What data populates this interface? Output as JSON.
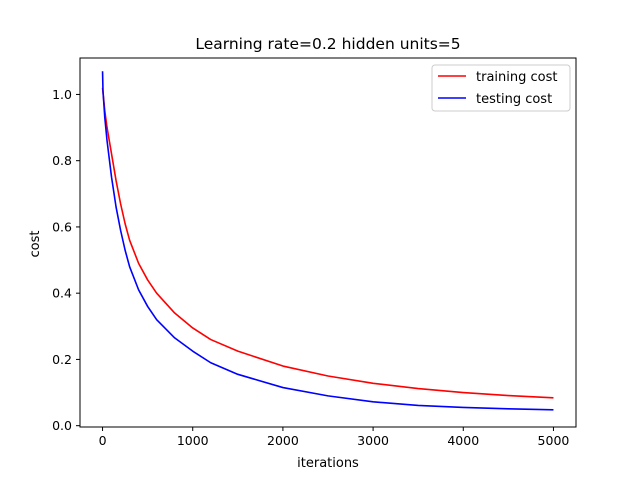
{
  "chart_data": {
    "type": "line",
    "title": "Learning rate=0.2 hidden units=5",
    "xlabel": "iterations",
    "ylabel": "cost",
    "xlim": [
      -250,
      5250
    ],
    "ylim": [
      -0.004,
      1.11
    ],
    "xticks": [
      0,
      1000,
      2000,
      3000,
      4000,
      5000
    ],
    "xtick_labels": [
      "0",
      "1000",
      "2000",
      "3000",
      "4000",
      "5000"
    ],
    "yticks": [
      0.0,
      0.2,
      0.4,
      0.6,
      0.8,
      1.0
    ],
    "ytick_labels": [
      "0.0",
      "0.2",
      "0.4",
      "0.6",
      "0.8",
      "1.0"
    ],
    "grid": false,
    "legend_position": "top-right",
    "series": [
      {
        "name": "training cost",
        "color": "#ff0000",
        "x": [
          0,
          25,
          50,
          100,
          150,
          200,
          250,
          300,
          400,
          500,
          600,
          800,
          1000,
          1200,
          1500,
          2000,
          2500,
          3000,
          3500,
          4000,
          4500,
          5000
        ],
        "y": [
          1.02,
          0.95,
          0.9,
          0.82,
          0.74,
          0.67,
          0.61,
          0.56,
          0.49,
          0.44,
          0.4,
          0.34,
          0.295,
          0.26,
          0.225,
          0.18,
          0.15,
          0.128,
          0.112,
          0.1,
          0.091,
          0.084
        ]
      },
      {
        "name": "testing cost",
        "color": "#0000ff",
        "x": [
          0,
          5,
          25,
          50,
          100,
          150,
          200,
          250,
          300,
          400,
          500,
          600,
          800,
          1000,
          1200,
          1500,
          2000,
          2500,
          3000,
          3500,
          4000,
          4500,
          5000
        ],
        "y": [
          1.07,
          1.01,
          0.93,
          0.86,
          0.75,
          0.66,
          0.59,
          0.53,
          0.48,
          0.41,
          0.36,
          0.32,
          0.265,
          0.225,
          0.19,
          0.155,
          0.115,
          0.09,
          0.072,
          0.061,
          0.055,
          0.051,
          0.048
        ]
      }
    ]
  }
}
